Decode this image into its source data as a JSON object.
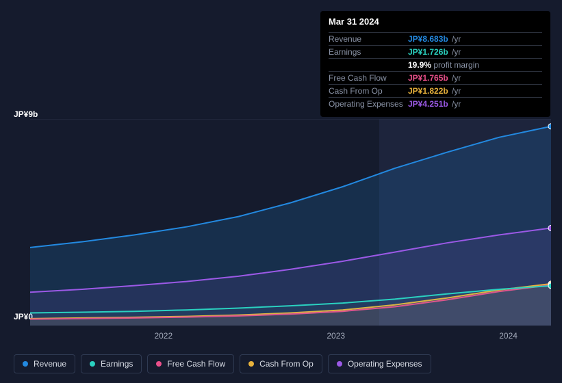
{
  "tooltip": {
    "date": "Mar 31 2024",
    "rows": [
      {
        "label": "Revenue",
        "value": "JP¥8.683b",
        "unit": "/yr",
        "color": "#2389e0"
      },
      {
        "label": "Earnings",
        "value": "JP¥1.726b",
        "unit": "/yr",
        "color": "#2ad1c0",
        "extra_pct": "19.9%",
        "extra_text": "profit margin"
      },
      {
        "label": "Free Cash Flow",
        "value": "JP¥1.765b",
        "unit": "/yr",
        "color": "#e94f8a"
      },
      {
        "label": "Cash From Op",
        "value": "JP¥1.822b",
        "unit": "/yr",
        "color": "#e8b23c"
      },
      {
        "label": "Operating Expenses",
        "value": "JP¥4.251b",
        "unit": "/yr",
        "color": "#9b59e6"
      }
    ]
  },
  "chart": {
    "type": "area",
    "background_color": "#151b2d",
    "highlight_band_color": "#232c46",
    "grid_color": "#2a3248",
    "y_max": 9,
    "y_min": 0,
    "y_label_top": "JP¥9b",
    "y_label_bottom": "JP¥0",
    "x_ticks": [
      {
        "label": "2022",
        "t": 0.256
      },
      {
        "label": "2023",
        "t": 0.587
      },
      {
        "label": "2024",
        "t": 0.918
      }
    ],
    "highlight_start_t": 0.67,
    "highlight_end_t": 1.0,
    "label_fontsize": 12,
    "series": [
      {
        "name": "Revenue",
        "color": "#2389e0",
        "fill_opacity": 0.18,
        "line_width": 2,
        "points": [
          {
            "t": 0.0,
            "v": 3.4
          },
          {
            "t": 0.1,
            "v": 3.65
          },
          {
            "t": 0.2,
            "v": 3.95
          },
          {
            "t": 0.3,
            "v": 4.3
          },
          {
            "t": 0.4,
            "v": 4.75
          },
          {
            "t": 0.5,
            "v": 5.35
          },
          {
            "t": 0.6,
            "v": 6.05
          },
          {
            "t": 0.7,
            "v": 6.85
          },
          {
            "t": 0.8,
            "v": 7.55
          },
          {
            "t": 0.9,
            "v": 8.2
          },
          {
            "t": 1.0,
            "v": 8.68
          }
        ]
      },
      {
        "name": "Operating Expenses",
        "color": "#9b59e6",
        "fill_opacity": 0.1,
        "line_width": 2,
        "points": [
          {
            "t": 0.0,
            "v": 1.45
          },
          {
            "t": 0.1,
            "v": 1.58
          },
          {
            "t": 0.2,
            "v": 1.74
          },
          {
            "t": 0.3,
            "v": 1.92
          },
          {
            "t": 0.4,
            "v": 2.15
          },
          {
            "t": 0.5,
            "v": 2.45
          },
          {
            "t": 0.6,
            "v": 2.8
          },
          {
            "t": 0.7,
            "v": 3.2
          },
          {
            "t": 0.8,
            "v": 3.6
          },
          {
            "t": 0.9,
            "v": 3.95
          },
          {
            "t": 1.0,
            "v": 4.25
          }
        ]
      },
      {
        "name": "Cash From Op",
        "color": "#e8b23c",
        "fill_opacity": 0.08,
        "line_width": 2,
        "points": [
          {
            "t": 0.0,
            "v": 0.3
          },
          {
            "t": 0.1,
            "v": 0.33
          },
          {
            "t": 0.2,
            "v": 0.36
          },
          {
            "t": 0.3,
            "v": 0.4
          },
          {
            "t": 0.4,
            "v": 0.46
          },
          {
            "t": 0.5,
            "v": 0.55
          },
          {
            "t": 0.6,
            "v": 0.68
          },
          {
            "t": 0.7,
            "v": 0.9
          },
          {
            "t": 0.8,
            "v": 1.2
          },
          {
            "t": 0.9,
            "v": 1.55
          },
          {
            "t": 1.0,
            "v": 1.82
          }
        ]
      },
      {
        "name": "Free Cash Flow",
        "color": "#e94f8a",
        "fill_opacity": 0.06,
        "line_width": 2,
        "points": [
          {
            "t": 0.0,
            "v": 0.28
          },
          {
            "t": 0.1,
            "v": 0.3
          },
          {
            "t": 0.2,
            "v": 0.33
          },
          {
            "t": 0.3,
            "v": 0.37
          },
          {
            "t": 0.4,
            "v": 0.42
          },
          {
            "t": 0.5,
            "v": 0.5
          },
          {
            "t": 0.6,
            "v": 0.62
          },
          {
            "t": 0.7,
            "v": 0.82
          },
          {
            "t": 0.8,
            "v": 1.12
          },
          {
            "t": 0.9,
            "v": 1.48
          },
          {
            "t": 1.0,
            "v": 1.77
          }
        ]
      },
      {
        "name": "Earnings",
        "color": "#2ad1c0",
        "fill_opacity": 0.06,
        "line_width": 2,
        "points": [
          {
            "t": 0.0,
            "v": 0.55
          },
          {
            "t": 0.1,
            "v": 0.58
          },
          {
            "t": 0.2,
            "v": 0.62
          },
          {
            "t": 0.3,
            "v": 0.68
          },
          {
            "t": 0.4,
            "v": 0.76
          },
          {
            "t": 0.5,
            "v": 0.86
          },
          {
            "t": 0.6,
            "v": 0.98
          },
          {
            "t": 0.7,
            "v": 1.15
          },
          {
            "t": 0.8,
            "v": 1.38
          },
          {
            "t": 0.9,
            "v": 1.58
          },
          {
            "t": 1.0,
            "v": 1.73
          }
        ]
      }
    ],
    "end_markers": true,
    "end_marker_radius": 4
  },
  "legend": [
    {
      "label": "Revenue",
      "color": "#2389e0"
    },
    {
      "label": "Earnings",
      "color": "#2ad1c0"
    },
    {
      "label": "Free Cash Flow",
      "color": "#e94f8a"
    },
    {
      "label": "Cash From Op",
      "color": "#e8b23c"
    },
    {
      "label": "Operating Expenses",
      "color": "#9b59e6"
    }
  ]
}
